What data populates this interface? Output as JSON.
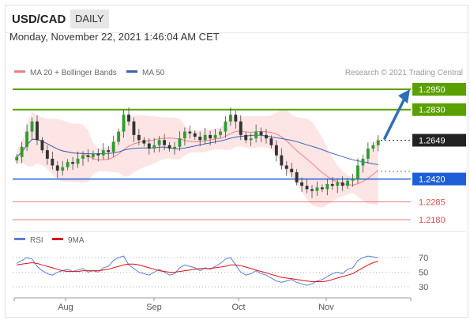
{
  "header": {
    "symbol": "USD/CAD",
    "period": "DAILY",
    "datetime": "Monday, November 22, 2021 1:46:04 AM CET"
  },
  "legend": {
    "ma20_bb_label": "MA 20 + Bollinger Bands",
    "ma50_label": "MA 50",
    "copyright": "Research © 2021 Trading Central",
    "rsi_label": "RSI",
    "ma9_label": "9MA"
  },
  "colors": {
    "ma20": "#f08080",
    "bands": "#fde0e0",
    "ma50": "#3e62b0",
    "up": "#2e9e2e",
    "down": "#333333",
    "resistance": "#5aa000",
    "support": "#1e5fd8",
    "support_weak": "#e05050",
    "arrow": "#2d6fb5",
    "rsi": "#5b7fd6",
    "rsi_ma": "#dd1111"
  },
  "chart_data": [
    {
      "type": "candlestick",
      "title": "USD/CAD",
      "x_tick_labels": [
        "Aug",
        "Sep",
        "Oct",
        "Nov"
      ],
      "ylim": [
        1.215,
        1.3
      ],
      "levels": [
        {
          "value": 1.295,
          "label": "1.2950",
          "kind": "resistance"
        },
        {
          "value": 1.283,
          "label": "1.2830",
          "kind": "resistance"
        },
        {
          "value": 1.2649,
          "label": "1.2649",
          "kind": "current"
        },
        {
          "value": 1.242,
          "label": "1.2420",
          "kind": "support"
        },
        {
          "value": 1.2285,
          "label": "1.2285",
          "kind": "weak_support"
        },
        {
          "value": 1.218,
          "label": "1.2180",
          "kind": "weak_support"
        }
      ],
      "series_close": [
        1.255,
        1.261,
        1.27,
        1.276,
        1.265,
        1.259,
        1.254,
        1.25,
        1.247,
        1.249,
        1.252,
        1.251,
        1.254,
        1.256,
        1.255,
        1.257,
        1.256,
        1.259,
        1.258,
        1.264,
        1.27,
        1.28,
        1.276,
        1.268,
        1.265,
        1.263,
        1.26,
        1.262,
        1.265,
        1.262,
        1.26,
        1.261,
        1.266,
        1.27,
        1.269,
        1.267,
        1.265,
        1.268,
        1.266,
        1.268,
        1.27,
        1.276,
        1.28,
        1.276,
        1.268,
        1.265,
        1.266,
        1.27,
        1.268,
        1.266,
        1.262,
        1.256,
        1.25,
        1.248,
        1.246,
        1.24,
        1.238,
        1.236,
        1.235,
        1.237,
        1.236,
        1.239,
        1.238,
        1.24,
        1.238,
        1.241,
        1.242,
        1.25,
        1.254,
        1.26,
        1.262,
        1.2649
      ]
    },
    {
      "type": "line",
      "title": "RSI",
      "x_tick_labels": [
        "Aug",
        "Sep",
        "Oct",
        "Nov"
      ],
      "ylim": [
        20,
        80
      ],
      "y_tick_labels": [
        "70",
        "50",
        "30"
      ],
      "y_ticks": [
        70,
        50,
        30
      ],
      "series": [
        {
          "name": "RSI",
          "values": [
            62,
            66,
            70,
            68,
            58,
            52,
            48,
            46,
            50,
            52,
            54,
            51,
            53,
            55,
            50,
            52,
            50,
            56,
            58,
            66,
            70,
            72,
            60,
            55,
            50,
            48,
            46,
            50,
            54,
            50,
            46,
            48,
            56,
            60,
            58,
            56,
            52,
            56,
            54,
            58,
            62,
            68,
            70,
            60,
            50,
            46,
            48,
            52,
            48,
            46,
            42,
            38,
            36,
            38,
            40,
            36,
            34,
            32,
            34,
            38,
            40,
            44,
            48,
            50,
            48,
            54,
            56,
            66,
            70,
            72,
            71,
            70
          ]
        },
        {
          "name": "9MA",
          "values": [
            60,
            61,
            62,
            63,
            62,
            60,
            58,
            56,
            54,
            52,
            51,
            51,
            51,
            52,
            52,
            52,
            52,
            53,
            54,
            56,
            58,
            60,
            61,
            61,
            60,
            58,
            56,
            54,
            52,
            51,
            50,
            50,
            51,
            52,
            53,
            54,
            55,
            55,
            55,
            56,
            57,
            58,
            60,
            60,
            59,
            57,
            55,
            53,
            51,
            49,
            47,
            45,
            43,
            42,
            41,
            40,
            39,
            38,
            37,
            37,
            37,
            38,
            40,
            42,
            44,
            46,
            48,
            52,
            56,
            60,
            63,
            65
          ]
        }
      ]
    }
  ]
}
